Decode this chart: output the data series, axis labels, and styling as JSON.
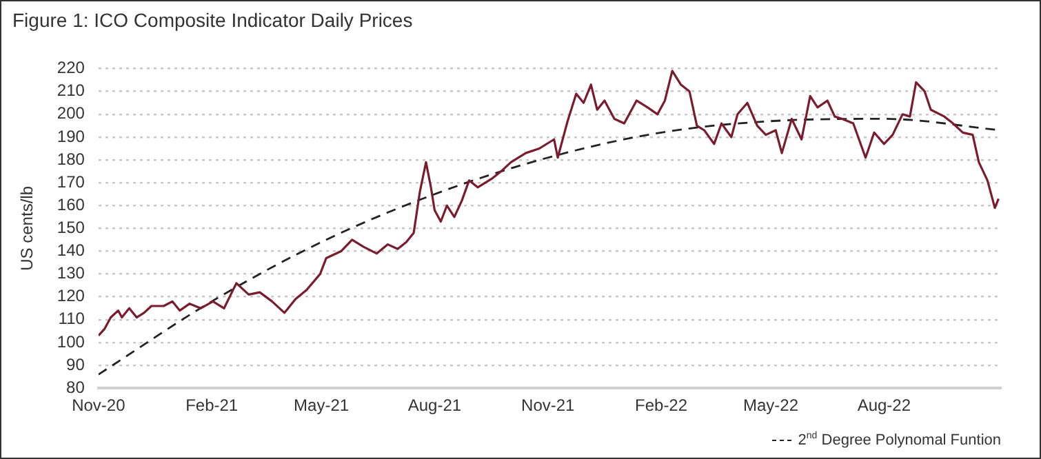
{
  "chart_data": {
    "type": "line",
    "title": "Figure 1: ICO Composite Indicator Daily Prices",
    "ylabel": "US cents/lb",
    "xlim": [
      "2020-11-01",
      "2022-11-04"
    ],
    "xticks": [
      {
        "value": "2020-11-01",
        "label": "Nov-20"
      },
      {
        "value": "2021-02-01",
        "label": "Feb-21"
      },
      {
        "value": "2021-05-01",
        "label": "May-21"
      },
      {
        "value": "2021-08-01",
        "label": "Aug-21"
      },
      {
        "value": "2021-11-01",
        "label": "Nov-21"
      },
      {
        "value": "2022-02-01",
        "label": "Feb-22"
      },
      {
        "value": "2022-05-01",
        "label": "May-22"
      },
      {
        "value": "2022-08-01",
        "label": "Aug-22"
      }
    ],
    "ylim": [
      80,
      220
    ],
    "yticks": [
      80,
      90,
      100,
      110,
      120,
      130,
      140,
      150,
      160,
      170,
      180,
      190,
      200,
      210,
      220
    ],
    "grid": "y",
    "legend": "bottom right",
    "marker": "none",
    "series": [
      {
        "color": "#7b1c2e",
        "line_style": "solid",
        "x": [
          "2020-11-01",
          "2020-11-06",
          "2020-11-11",
          "2020-11-17",
          "2020-11-20",
          "2020-11-26",
          "2020-12-02",
          "2020-12-08",
          "2020-12-14",
          "2020-12-24",
          "2020-12-31",
          "2021-01-06",
          "2021-01-14",
          "2021-01-23",
          "2021-02-02",
          "2021-02-11",
          "2021-02-21",
          "2021-03-03",
          "2021-03-12",
          "2021-03-22",
          "2021-04-01",
          "2021-04-10",
          "2021-04-19",
          "2021-04-30",
          "2021-05-05",
          "2021-05-17",
          "2021-05-26",
          "2021-06-04",
          "2021-06-15",
          "2021-06-24",
          "2021-07-02",
          "2021-07-09",
          "2021-07-15",
          "2021-07-20",
          "2021-07-25",
          "2021-07-29",
          "2021-08-01",
          "2021-08-06",
          "2021-08-11",
          "2021-08-17",
          "2021-08-23",
          "2021-08-29",
          "2021-09-05",
          "2021-09-17",
          "2021-09-24",
          "2021-10-02",
          "2021-10-14",
          "2021-10-25",
          "2021-11-06",
          "2021-11-09",
          "2021-11-17",
          "2021-11-24",
          "2021-11-30",
          "2021-12-06",
          "2021-12-11",
          "2021-12-17",
          "2021-12-25",
          "2022-01-02",
          "2022-01-12",
          "2022-01-21",
          "2022-01-29",
          "2022-02-04",
          "2022-02-10",
          "2022-02-17",
          "2022-02-24",
          "2022-03-02",
          "2022-03-08",
          "2022-03-16",
          "2022-03-22",
          "2022-03-30",
          "2022-04-04",
          "2022-04-12",
          "2022-04-20",
          "2022-04-27",
          "2022-05-05",
          "2022-05-10",
          "2022-05-18",
          "2022-05-26",
          "2022-06-02",
          "2022-06-08",
          "2022-06-16",
          "2022-06-22",
          "2022-06-28",
          "2022-07-07",
          "2022-07-17",
          "2022-07-24",
          "2022-08-01",
          "2022-08-08",
          "2022-08-16",
          "2022-08-22",
          "2022-08-27",
          "2022-09-03",
          "2022-09-08",
          "2022-09-19",
          "2022-09-26",
          "2022-10-04",
          "2022-10-12",
          "2022-10-17",
          "2022-10-24",
          "2022-10-30",
          "2022-11-02"
        ],
        "values": [
          103,
          106,
          111,
          114,
          111,
          115,
          111,
          113,
          116,
          116,
          118,
          114,
          117,
          115,
          118,
          115,
          126,
          121,
          122,
          118,
          113,
          119,
          123,
          130,
          137,
          140,
          145,
          142,
          139,
          143,
          141,
          144,
          148,
          166,
          179,
          168,
          158,
          153,
          160,
          155,
          162,
          171,
          168,
          172,
          175,
          179,
          183,
          185,
          189,
          181,
          197,
          209,
          205,
          213,
          202,
          206,
          198,
          196,
          206,
          203,
          200,
          206,
          219,
          213,
          210,
          195,
          193,
          187,
          196,
          190,
          200,
          205,
          195,
          191,
          193,
          183,
          198,
          189,
          208,
          203,
          206,
          199,
          198,
          196,
          181,
          192,
          187,
          191,
          200,
          199,
          214,
          210,
          202,
          199,
          196,
          192,
          191,
          179,
          171,
          159,
          163
        ]
      },
      {
        "name": "2$^{nd}$ Degree Polynomal Funtion",
        "color": "#222222",
        "line_style": "dashed",
        "x": [
          "2020-11-01",
          "2021-02-01",
          "2021-05-01",
          "2021-08-01",
          "2021-11-01",
          "2022-02-01",
          "2022-05-01",
          "2022-08-01",
          "2022-11-04"
        ],
        "values": [
          86,
          118,
          144,
          165,
          181,
          192,
          197,
          198,
          193
        ]
      }
    ]
  }
}
